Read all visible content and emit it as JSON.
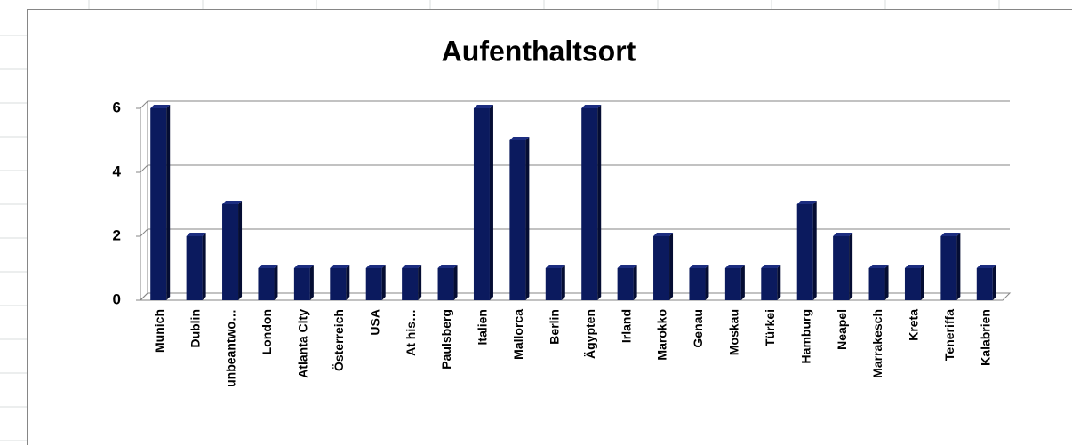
{
  "chart_data": {
    "type": "bar",
    "title": "Aufenthaltsort",
    "categories": [
      "Munich",
      "Dublin",
      "unbeantwo…",
      "London",
      "Atlanta City",
      "Österreich",
      "USA",
      "At his…",
      "Paulsberg",
      "Italien",
      "Mallorca",
      "Berlin",
      "Ägypten",
      "Irland",
      "Marokko",
      "Genau",
      "Moskau",
      "Türkei",
      "Hamburg",
      "Neapel",
      "Marrakesch",
      "Kreta",
      "Teneriffa",
      "Kalabrien"
    ],
    "values": [
      6,
      2,
      3,
      1,
      1,
      1,
      1,
      1,
      1,
      6,
      5,
      1,
      6,
      1,
      2,
      1,
      1,
      1,
      3,
      2,
      1,
      1,
      2,
      1
    ],
    "color": "#0b1a5e",
    "ylim": [
      0,
      6
    ],
    "yticks": [
      0,
      2,
      4,
      6
    ],
    "grid": true
  }
}
